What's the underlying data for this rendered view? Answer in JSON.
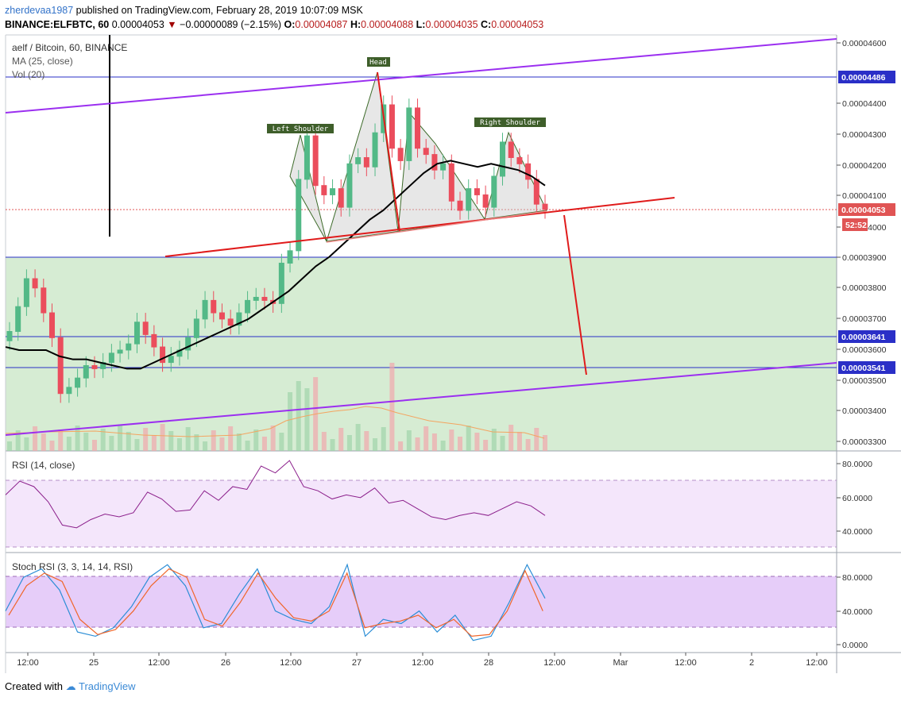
{
  "header": {
    "user": "zherdevaa1987",
    "published_text": "published on TradingView.com, February 28, 2019 10:07:09 MSK",
    "symbol_line": "BINANCE:ELFBTC, 60",
    "last": "0.00004053",
    "change": "−0.00000089 (−2.15%)",
    "o_label": "O:",
    "o": "0.00004087",
    "h_label": "H:",
    "h": "0.00004088",
    "l_label": "L:",
    "l": "0.00004035",
    "c_label": "C:",
    "c": "0.00004053"
  },
  "legend": {
    "title": "aelf / Bitcoin, 60, BINANCE",
    "ma": "MA (25, close)",
    "vol": "Vol (20)",
    "rsi": "RSI (14, close)",
    "stoch": "Stoch RSI (3, 3, 14, 14, RSI)"
  },
  "annotations": {
    "head": "Head",
    "left_shoulder": "Left Shoulder",
    "right_shoulder": "Right Shoulder"
  },
  "price_axis": {
    "ticks": [
      "0.00004600",
      "0.00004400",
      "0.00004300",
      "0.00004200",
      "0.00004100",
      "0.00004000",
      "0.00003900",
      "0.00003800",
      "0.00003700",
      "0.00003600",
      "0.00003500",
      "0.00003400",
      "0.00003300"
    ],
    "badges": [
      {
        "text": "0.00004486",
        "color": "#2a2fc7"
      },
      {
        "text": "0.00004053",
        "color": "#e05454"
      },
      {
        "text": "52:52",
        "color": "#e05454"
      },
      {
        "text": "0.00003641",
        "color": "#2a2fc7"
      },
      {
        "text": "0.00003541",
        "color": "#2a2fc7"
      }
    ]
  },
  "rsi_axis": [
    "80.0000",
    "60.0000",
    "40.0000"
  ],
  "stoch_axis": [
    "80.0000",
    "40.0000",
    "0.0000"
  ],
  "time_axis": [
    "12:00",
    "25",
    "12:00",
    "26",
    "12:00",
    "27",
    "12:00",
    "28",
    "12:00",
    "Mar",
    "12:00",
    "2",
    "12:00"
  ],
  "footer": {
    "created_with": "Created with",
    "brand": "TradingView"
  },
  "colors": {
    "up": "#53b987",
    "down": "#eb4d5c",
    "ma": "#000000",
    "channel": "#9b2ff0",
    "trend": "#e01b1b",
    "hline": "#2a2fc7",
    "zone": "#d6ecd3",
    "rsi_band": "#f4e6fb",
    "stoch_band": "#e6cdf9"
  },
  "chart_data": {
    "type": "candlestick",
    "ylim": [
      3.27e-05,
      4.61e-05
    ],
    "key_levels": [
      4.486e-05,
      3.9e-05,
      3.641e-05,
      3.541e-05
    ],
    "close": [
      3.66e-05,
      3.74e-05,
      3.83e-05,
      3.8e-05,
      3.72e-05,
      3.64e-05,
      3.46e-05,
      3.48e-05,
      3.51e-05,
      3.55e-05,
      3.54e-05,
      3.56e-05,
      3.59e-05,
      3.6e-05,
      3.62e-05,
      3.69e-05,
      3.65e-05,
      3.61e-05,
      3.56e-05,
      3.58e-05,
      3.6e-05,
      3.64e-05,
      3.7e-05,
      3.76e-05,
      3.72e-05,
      3.7e-05,
      3.68e-05,
      3.72e-05,
      3.76e-05,
      3.77e-05,
      3.76e-05,
      3.75e-05,
      3.88e-05,
      3.92e-05,
      4.15e-05,
      4.29e-05,
      4.13e-05,
      4.1e-05,
      4.12e-05,
      4.06e-05,
      4.2e-05,
      4.22e-05,
      4.19e-05,
      4.3e-05,
      4.39e-05,
      4.25e-05,
      4.21e-05,
      4.38e-05,
      4.25e-05,
      4.23e-05,
      4.18e-05,
      4.2e-05,
      4.08e-05,
      4.05e-05,
      4.12e-05,
      4.1e-05,
      4.06e-05,
      4.16e-05,
      4.27e-05,
      4.22e-05,
      4.2e-05,
      4.15e-05,
      4.07e-05,
      4.053e-05
    ],
    "ma25": [
      3.61e-05,
      3.6e-05,
      3.6e-05,
      3.6e-05,
      3.58e-05,
      3.57e-05,
      3.57e-05,
      3.56e-05,
      3.55e-05,
      3.54e-05,
      3.54e-05,
      3.56e-05,
      3.58e-05,
      3.6e-05,
      3.62e-05,
      3.64e-05,
      3.66e-05,
      3.68e-05,
      3.7e-05,
      3.73e-05,
      3.76e-05,
      3.79e-05,
      3.83e-05,
      3.87e-05,
      3.9e-05,
      3.94e-05,
      3.98e-05,
      4.02e-05,
      4.05e-05,
      4.09e-05,
      4.13e-05,
      4.17e-05,
      4.2e-05,
      4.21e-05,
      4.2e-05,
      4.19e-05,
      4.2e-05,
      4.19e-05,
      4.18e-05,
      4.16e-05,
      4.13e-05
    ],
    "rsi": [
      60,
      70,
      66,
      55,
      38,
      36,
      42,
      46,
      44,
      47,
      62,
      57,
      48,
      49,
      63,
      56,
      66,
      64,
      81,
      76,
      85,
      66,
      63,
      57,
      60,
      58,
      65,
      54,
      56,
      50,
      44,
      42,
      45,
      47,
      45,
      50,
      55,
      52,
      45
    ],
    "stoch_rsi_k": [
      40,
      80,
      90,
      65,
      15,
      10,
      20,
      45,
      80,
      95,
      70,
      20,
      25,
      60,
      90,
      40,
      30,
      25,
      45,
      95,
      10,
      30,
      25,
      40,
      15,
      35,
      5,
      10,
      50,
      95,
      55
    ],
    "stoch_rsi_d": [
      35,
      70,
      85,
      75,
      30,
      12,
      18,
      40,
      70,
      90,
      80,
      30,
      22,
      50,
      85,
      55,
      32,
      28,
      40,
      85,
      20,
      25,
      28,
      35,
      20,
      30,
      10,
      12,
      40,
      88,
      40
    ]
  }
}
